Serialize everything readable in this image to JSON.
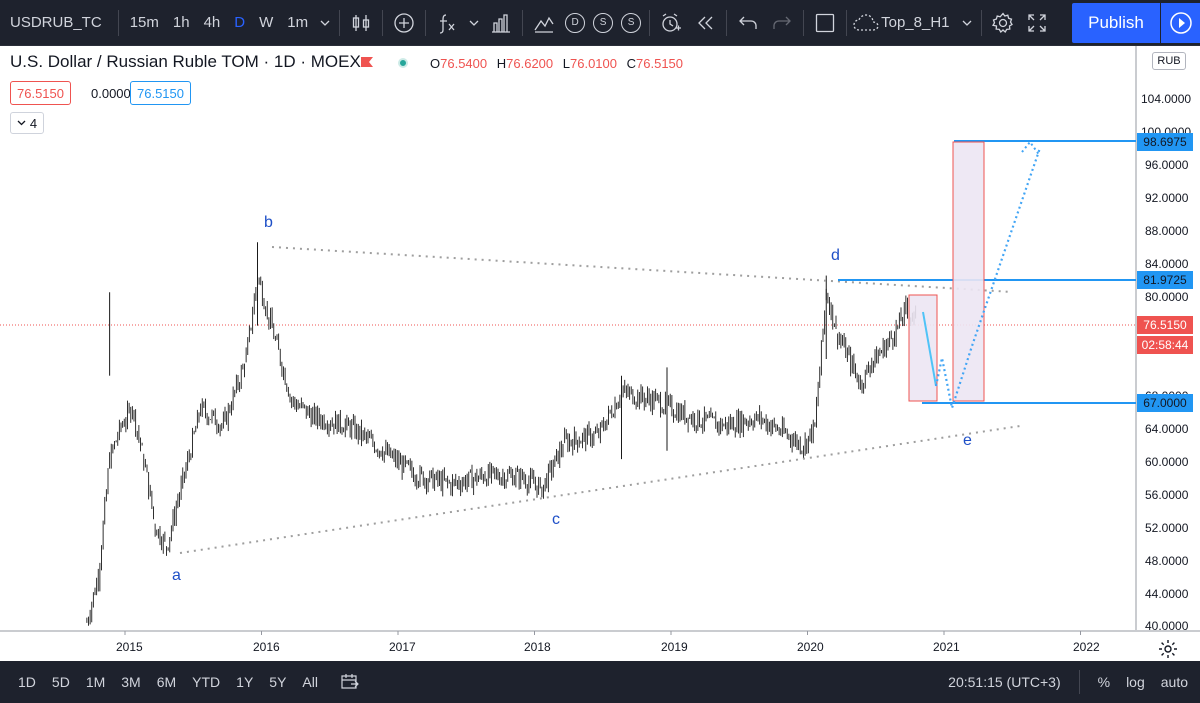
{
  "toolbar": {
    "symbol": "USDRUB_TC",
    "intervals": [
      "15m",
      "1h",
      "4h",
      "D",
      "W",
      "1m"
    ],
    "active_interval": "D",
    "layout_name": "Top_8_H1",
    "publish_label": "Publish",
    "circle_icons": [
      "D",
      "S",
      "S"
    ]
  },
  "legend": {
    "title": "U.S. Dollar / Russian Ruble TOM · 1D · MOEX",
    "open_label": "O",
    "open": "76.5400",
    "high_label": "H",
    "high": "76.6200",
    "low_label": "L",
    "low": "76.0100",
    "close_label": "C",
    "close": "76.5150",
    "value_red": "76.5150",
    "value_change": "0.0000",
    "value_blue": "76.5150",
    "collapse_count": "4"
  },
  "price_axis": {
    "currency": "RUB",
    "ticks": [
      "104.0000",
      "100.0000",
      "96.0000",
      "92.0000",
      "88.0000",
      "84.0000",
      "80.0000",
      "72.0000",
      "68.0000",
      "64.0000",
      "60.0000",
      "56.0000",
      "52.0000",
      "48.0000",
      "44.0000",
      "40.0000"
    ],
    "levels": [
      {
        "label": "98.6975",
        "color": "#2196f3"
      },
      {
        "label": "81.9725",
        "color": "#2196f3"
      },
      {
        "label": "76.5150",
        "color": "#ef5350"
      },
      {
        "label": "02:58:44",
        "color": "#ef5350"
      },
      {
        "label": "67.0000",
        "color": "#2196f3"
      }
    ]
  },
  "time_axis": {
    "ticks": [
      "2015",
      "2016",
      "2017",
      "2018",
      "2019",
      "2020",
      "2021",
      "2022"
    ]
  },
  "waves": [
    "a",
    "b",
    "c",
    "d",
    "e"
  ],
  "chart_data": {
    "type": "candlestick",
    "symbol": "USDRUB_TC",
    "x_range": [
      "2014-08",
      "2022-04"
    ],
    "ylim": [
      40,
      106
    ],
    "approx_close_path": [
      {
        "x": "2014-10",
        "y": 40.5
      },
      {
        "x": "2014-11",
        "y": 46
      },
      {
        "x": "2014-12",
        "y": 60
      },
      {
        "x": "2015-01",
        "y": 64
      },
      {
        "x": "2015-02",
        "y": 66
      },
      {
        "x": "2015-03",
        "y": 60
      },
      {
        "x": "2015-04",
        "y": 52
      },
      {
        "x": "2015-05",
        "y": 49.5
      },
      {
        "x": "2015-06",
        "y": 55
      },
      {
        "x": "2015-08",
        "y": 66
      },
      {
        "x": "2015-10",
        "y": 64
      },
      {
        "x": "2015-12",
        "y": 72
      },
      {
        "x": "2016-01",
        "y": 82
      },
      {
        "x": "2016-02",
        "y": 77
      },
      {
        "x": "2016-04",
        "y": 67
      },
      {
        "x": "2016-06",
        "y": 65
      },
      {
        "x": "2016-09",
        "y": 64
      },
      {
        "x": "2016-12",
        "y": 61
      },
      {
        "x": "2017-03",
        "y": 58
      },
      {
        "x": "2017-06",
        "y": 57
      },
      {
        "x": "2017-09",
        "y": 58
      },
      {
        "x": "2017-12",
        "y": 58
      },
      {
        "x": "2018-02",
        "y": 56.5
      },
      {
        "x": "2018-04",
        "y": 62
      },
      {
        "x": "2018-07",
        "y": 63
      },
      {
        "x": "2018-09",
        "y": 68
      },
      {
        "x": "2018-12",
        "y": 67
      },
      {
        "x": "2019-03",
        "y": 65
      },
      {
        "x": "2019-06",
        "y": 64
      },
      {
        "x": "2019-09",
        "y": 65
      },
      {
        "x": "2019-12",
        "y": 62.5
      },
      {
        "x": "2020-01",
        "y": 61.5
      },
      {
        "x": "2020-02",
        "y": 64
      },
      {
        "x": "2020-03",
        "y": 80
      },
      {
        "x": "2020-04",
        "y": 75
      },
      {
        "x": "2020-06",
        "y": 69
      },
      {
        "x": "2020-07",
        "y": 71.5
      },
      {
        "x": "2020-09",
        "y": 75
      },
      {
        "x": "2020-10",
        "y": 78
      },
      {
        "x": "2020-11",
        "y": 76.5
      }
    ],
    "annotations": {
      "waves": [
        {
          "label": "a",
          "x": "2015-05",
          "y": 49
        },
        {
          "label": "b",
          "x": "2016-01",
          "y": 86
        },
        {
          "label": "c",
          "x": "2018-01",
          "y": 56
        },
        {
          "label": "d",
          "x": "2020-03",
          "y": 82
        },
        {
          "label": "e",
          "x": "2021-02",
          "y": 67
        }
      ],
      "levels": [
        98.6975,
        81.9725,
        76.515,
        67.0
      ]
    }
  }
}
